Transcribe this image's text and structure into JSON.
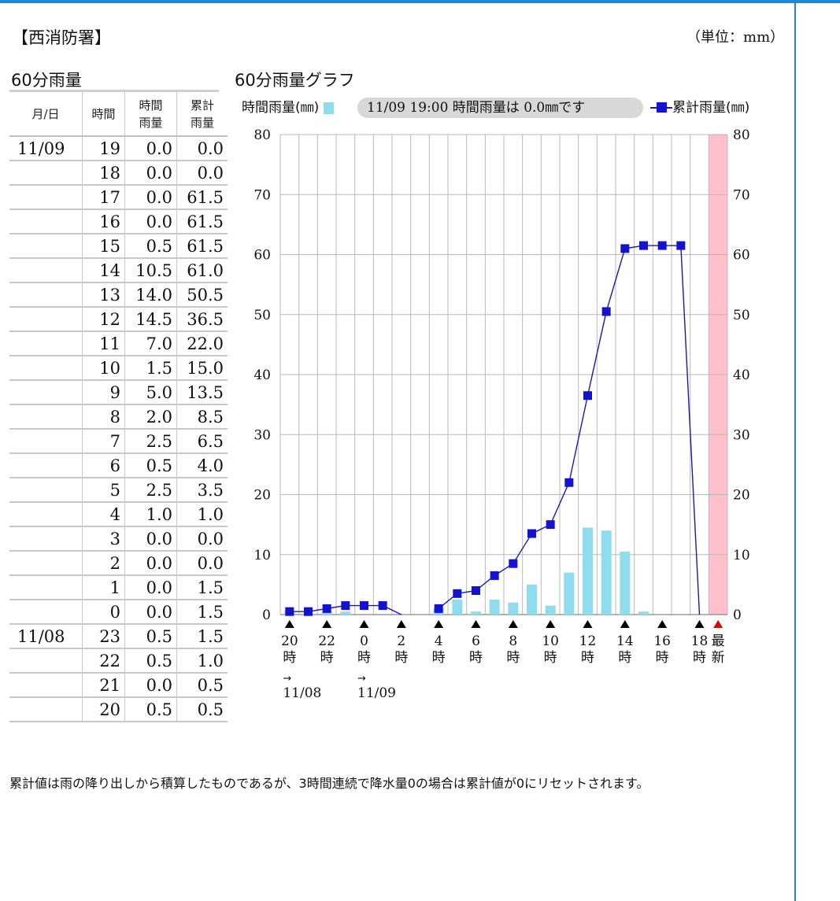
{
  "header": {
    "station": "【西消防署】",
    "unit": "（単位：mm）"
  },
  "table": {
    "title": "60分雨量",
    "headers": {
      "date": "月/日",
      "hour": "時間",
      "rain_line1": "時間",
      "rain_line2": "雨量",
      "cum_line1": "累計",
      "cum_line2": "雨量"
    },
    "rows": [
      {
        "date": "11/09",
        "hour": "19",
        "rain": "0.0",
        "cum": "0.0"
      },
      {
        "date": "",
        "hour": "18",
        "rain": "0.0",
        "cum": "0.0"
      },
      {
        "date": "",
        "hour": "17",
        "rain": "0.0",
        "cum": "61.5"
      },
      {
        "date": "",
        "hour": "16",
        "rain": "0.0",
        "cum": "61.5"
      },
      {
        "date": "",
        "hour": "15",
        "rain": "0.5",
        "cum": "61.5"
      },
      {
        "date": "",
        "hour": "14",
        "rain": "10.5",
        "cum": "61.0"
      },
      {
        "date": "",
        "hour": "13",
        "rain": "14.0",
        "cum": "50.5"
      },
      {
        "date": "",
        "hour": "12",
        "rain": "14.5",
        "cum": "36.5"
      },
      {
        "date": "",
        "hour": "11",
        "rain": "7.0",
        "cum": "22.0"
      },
      {
        "date": "",
        "hour": "10",
        "rain": "1.5",
        "cum": "15.0"
      },
      {
        "date": "",
        "hour": "9",
        "rain": "5.0",
        "cum": "13.5"
      },
      {
        "date": "",
        "hour": "8",
        "rain": "2.0",
        "cum": "8.5"
      },
      {
        "date": "",
        "hour": "7",
        "rain": "2.5",
        "cum": "6.5"
      },
      {
        "date": "",
        "hour": "6",
        "rain": "0.5",
        "cum": "4.0"
      },
      {
        "date": "",
        "hour": "5",
        "rain": "2.5",
        "cum": "3.5"
      },
      {
        "date": "",
        "hour": "4",
        "rain": "1.0",
        "cum": "1.0"
      },
      {
        "date": "",
        "hour": "3",
        "rain": "0.0",
        "cum": "0.0"
      },
      {
        "date": "",
        "hour": "2",
        "rain": "0.0",
        "cum": "0.0"
      },
      {
        "date": "",
        "hour": "1",
        "rain": "0.0",
        "cum": "1.5"
      },
      {
        "date": "",
        "hour": "0",
        "rain": "0.0",
        "cum": "1.5"
      },
      {
        "date": "11/08",
        "hour": "23",
        "rain": "0.5",
        "cum": "1.5"
      },
      {
        "date": "",
        "hour": "22",
        "rain": "0.5",
        "cum": "1.0"
      },
      {
        "date": "",
        "hour": "21",
        "rain": "0.0",
        "cum": "0.5"
      },
      {
        "date": "",
        "hour": "20",
        "rain": "0.5",
        "cum": "0.5"
      }
    ]
  },
  "chart_title": "60分雨量グラフ",
  "legend": {
    "hourly_label": "時間雨量(㎜)",
    "status": "11/09 19:00 時間雨量は 0.0㎜です",
    "cumulative_label": "累計雨量(㎜)"
  },
  "chart_data": {
    "type": "bar",
    "categories": [
      "20",
      "21",
      "22",
      "23",
      "0",
      "1",
      "2",
      "3",
      "4",
      "5",
      "6",
      "7",
      "8",
      "9",
      "10",
      "11",
      "12",
      "13",
      "14",
      "15",
      "16",
      "17",
      "18",
      "19"
    ],
    "series": [
      {
        "name": "時間雨量(㎜)",
        "type": "bar",
        "values": [
          0.5,
          0.0,
          0.5,
          0.5,
          0.0,
          0.0,
          0.0,
          0.0,
          1.0,
          2.5,
          0.5,
          2.5,
          2.0,
          5.0,
          1.5,
          7.0,
          14.5,
          14.0,
          10.5,
          0.5,
          0.0,
          0.0,
          0.0,
          null
        ]
      },
      {
        "name": "累計雨量(㎜)",
        "type": "line",
        "values": [
          0.5,
          0.5,
          1.0,
          1.5,
          1.5,
          1.5,
          0.0,
          null,
          1.0,
          3.5,
          4.0,
          6.5,
          8.5,
          13.5,
          15.0,
          22.0,
          36.5,
          50.5,
          61.0,
          61.5,
          61.5,
          61.5,
          0.0,
          null
        ]
      }
    ],
    "ylim": [
      0,
      80
    ],
    "yticks": [
      "0",
      "10",
      "20",
      "30",
      "40",
      "50",
      "60",
      "70",
      "80"
    ],
    "x_tick_labels": [
      {
        "top": "20",
        "bottom": "時",
        "idx": 0
      },
      {
        "top": "22",
        "bottom": "時",
        "idx": 2
      },
      {
        "top": "0",
        "bottom": "時",
        "idx": 4
      },
      {
        "top": "2",
        "bottom": "時",
        "idx": 6
      },
      {
        "top": "4",
        "bottom": "時",
        "idx": 8
      },
      {
        "top": "6",
        "bottom": "時",
        "idx": 10
      },
      {
        "top": "8",
        "bottom": "時",
        "idx": 12
      },
      {
        "top": "10",
        "bottom": "時",
        "idx": 14
      },
      {
        "top": "12",
        "bottom": "時",
        "idx": 16
      },
      {
        "top": "14",
        "bottom": "時",
        "idx": 18
      },
      {
        "top": "16",
        "bottom": "時",
        "idx": 20
      },
      {
        "top": "18",
        "bottom": "時",
        "idx": 22
      },
      {
        "top": "最",
        "bottom": "新",
        "idx": 23
      }
    ],
    "date_markers": [
      {
        "arrow": "→",
        "date": "11/08",
        "idx": 0
      },
      {
        "arrow": "→",
        "date": "11/09",
        "idx": 4
      }
    ],
    "latest_highlight_color": "#ffc0cb",
    "bar_color": "#8fdcee",
    "line_color": "#1a1aa8",
    "marker_color": "#1212d0",
    "latest_marker_color": "#e00000",
    "grid": true
  },
  "footer_note": "累計値は雨の降り出しから積算したものであるが、3時間連続で降水量0の場合は累計値が0にリセットされます。"
}
